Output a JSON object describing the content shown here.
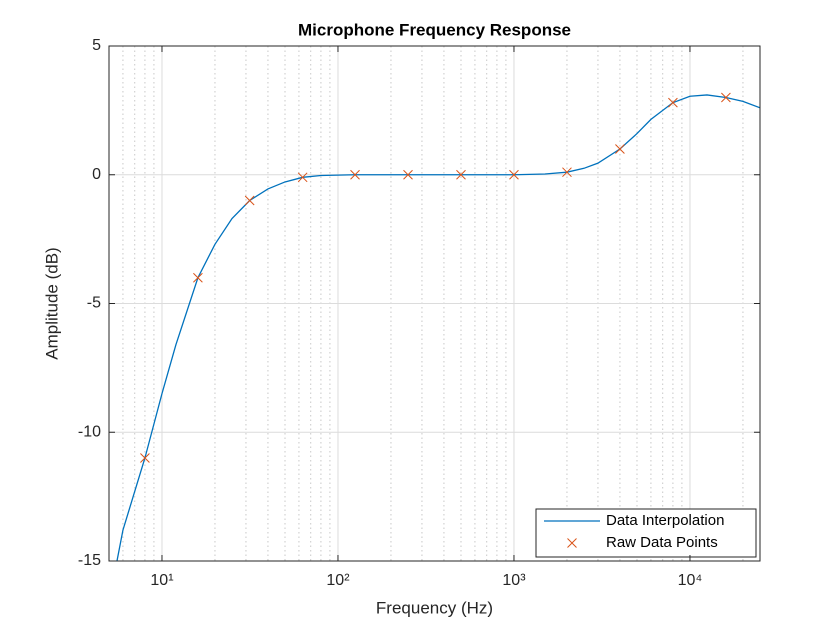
{
  "chart_data": {
    "type": "line",
    "title": "Microphone Frequency Response",
    "xlabel": "Frequency (Hz)",
    "ylabel": "Amplitude (dB)",
    "xscale": "log",
    "xlim": [
      5,
      25000
    ],
    "ylim": [
      -15,
      5
    ],
    "xticks": [
      {
        "value": 10,
        "label": "10¹"
      },
      {
        "value": 100,
        "label": "10²"
      },
      {
        "value": 1000,
        "label": "10³"
      },
      {
        "value": 10000,
        "label": "10⁴"
      }
    ],
    "yticks": [
      -15,
      -10,
      -5,
      0,
      5
    ],
    "grid": true,
    "minor_grid": true,
    "legend_position": "southeast",
    "series": [
      {
        "name": "Data Interpolation",
        "color": "#0072bd",
        "style": "line",
        "x": [
          5.55,
          6,
          7,
          8,
          10,
          12,
          16,
          20,
          25,
          31.5,
          40,
          50,
          63,
          80,
          125,
          250,
          500,
          1000,
          1500,
          2000,
          2500,
          3000,
          4000,
          5000,
          6000,
          8000,
          10000,
          12500,
          16000,
          20000,
          25000
        ],
        "values": [
          -15,
          -13.8,
          -12.3,
          -11,
          -8.5,
          -6.6,
          -4,
          -2.7,
          -1.7,
          -1,
          -0.55,
          -0.28,
          -0.1,
          -0.03,
          0,
          0,
          0,
          0,
          0.03,
          0.1,
          0.25,
          0.45,
          1,
          1.6,
          2.15,
          2.8,
          3.05,
          3.1,
          3,
          2.85,
          2.6
        ]
      },
      {
        "name": "Raw Data Points",
        "color": "#d95319",
        "style": "x",
        "x": [
          8,
          16,
          31.5,
          63,
          125,
          250,
          500,
          1000,
          2000,
          4000,
          8000,
          16000
        ],
        "values": [
          -11,
          -4,
          -1,
          -0.1,
          0,
          0,
          0,
          0,
          0.1,
          1,
          2.8,
          3
        ]
      }
    ]
  }
}
